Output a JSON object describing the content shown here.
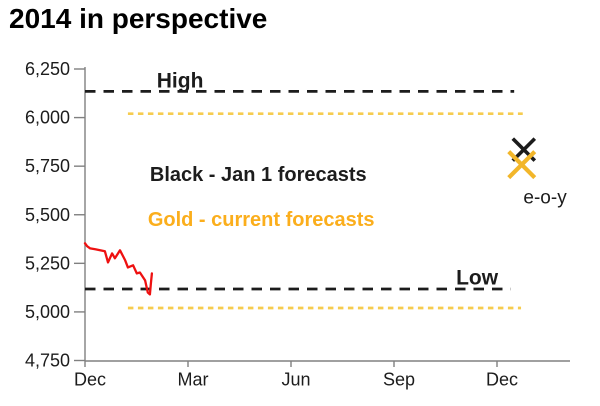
{
  "title": "2014 in perspective",
  "colors": {
    "black_series": "#1c1c1c",
    "gold_text": "#FBAE1C",
    "gold_dash": "#F6CC4F",
    "gold_marker": "#F2B62A",
    "red_series": "#EE1111",
    "axis": "#808080",
    "tick_text": "#1c1c1c"
  },
  "chart_data": {
    "type": "line",
    "title": "2014 in perspective",
    "y_axis": {
      "min": 4750,
      "max": 6250,
      "tick_step": 250,
      "tick_labels": [
        "6,250",
        "6,000",
        "5,750",
        "5,500",
        "5,250",
        "5,000",
        "4,750"
      ]
    },
    "x_axis": {
      "tick_labels": [
        "Dec",
        "Mar",
        "Jun",
        "Sep",
        "Dec"
      ],
      "tick_months": [
        0,
        3,
        6,
        9,
        12
      ],
      "max_month": 14.1
    },
    "legend": [
      {
        "series": "jan1_forecasts",
        "text": "Black - Jan 1 forecasts",
        "color": "black"
      },
      {
        "series": "current_forecasts",
        "text": "Gold  - current forecasts",
        "color": "gold"
      }
    ],
    "forecast_lines": [
      {
        "name": "jan1-high",
        "value": 6135,
        "color": "black",
        "start_month": 0,
        "end_month": 12.5
      },
      {
        "name": "current-high",
        "value": 6020,
        "color": "gold",
        "start_month": 1.25,
        "end_month": 12.75
      },
      {
        "name": "jan1-low",
        "value": 5118,
        "color": "black",
        "start_month": 0,
        "end_month": 12.4
      },
      {
        "name": "current-low",
        "value": 5020,
        "color": "gold",
        "start_month": 1.25,
        "end_month": 12.7
      }
    ],
    "actual_series": {
      "name": "actual-index-level",
      "color": "red",
      "points": [
        [
          0.0,
          5353
        ],
        [
          0.06,
          5338
        ],
        [
          0.15,
          5327
        ],
        [
          0.3,
          5322
        ],
        [
          0.44,
          5317
        ],
        [
          0.58,
          5312
        ],
        [
          0.67,
          5255
        ],
        [
          0.79,
          5301
        ],
        [
          0.87,
          5276
        ],
        [
          1.02,
          5317
        ],
        [
          1.17,
          5265
        ],
        [
          1.25,
          5229
        ],
        [
          1.4,
          5240
        ],
        [
          1.51,
          5198
        ],
        [
          1.6,
          5203
        ],
        [
          1.75,
          5162
        ],
        [
          1.83,
          5100
        ],
        [
          1.89,
          5090
        ],
        [
          1.92,
          5147
        ],
        [
          1.95,
          5198
        ]
      ]
    },
    "eoy_markers": [
      {
        "name": "jan1-eoy-forecast",
        "month": 12.78,
        "value": 5835,
        "color": "black",
        "half_size": 11,
        "stroke": 3.6
      },
      {
        "name": "current-eoy-forecast",
        "month": 12.72,
        "value": 5758,
        "color": "gold",
        "half_size": 13,
        "stroke": 4.2
      }
    ],
    "annotations": [
      {
        "text": "High",
        "month": 2.77,
        "value": 6155,
        "color": "black",
        "weight": "bold",
        "anchor": "middle",
        "size": 21
      },
      {
        "text": "Low",
        "month": 11.42,
        "value": 5142,
        "color": "black",
        "weight": "bold",
        "anchor": "middle",
        "size": 21
      },
      {
        "text": "Black - Jan 1 forecasts",
        "month": 1.89,
        "value": 5673,
        "color": "black",
        "weight": "bold",
        "anchor": "start",
        "size": 20
      },
      {
        "text": "Gold  - current forecasts",
        "month": 1.83,
        "value": 5441,
        "color": "gold",
        "weight": "bold",
        "anchor": "start",
        "size": 20
      },
      {
        "text": "e-o-y",
        "month": 13.4,
        "value": 5558,
        "color": "black",
        "weight": "normal",
        "anchor": "middle",
        "size": 19
      }
    ]
  }
}
